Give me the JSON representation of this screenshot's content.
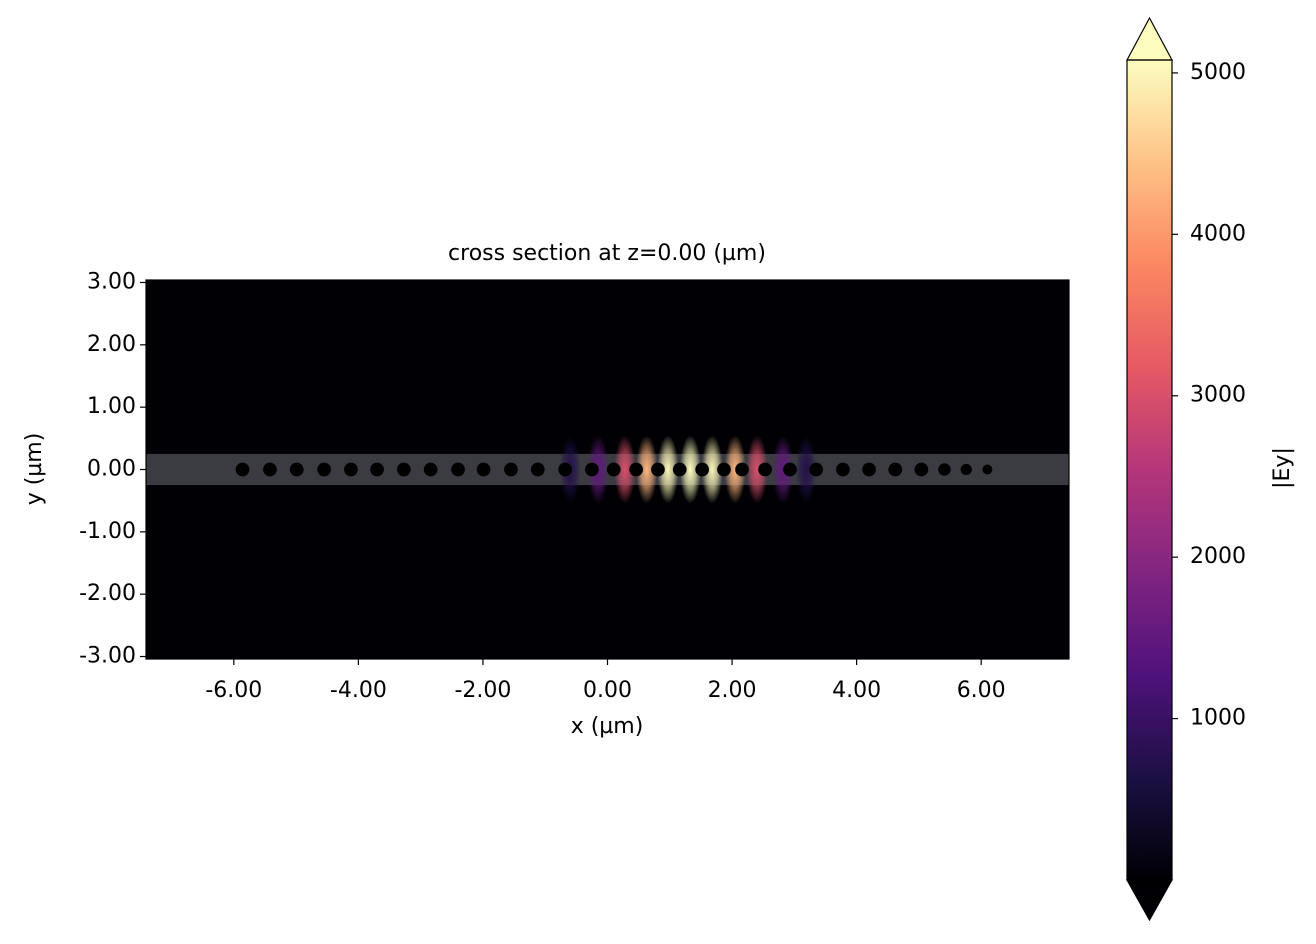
{
  "chart_data": {
    "type": "heatmap",
    "title": "cross section at z=0.00 (µm)",
    "xlabel": "x (µm)",
    "ylabel": "y (µm)",
    "xlim": [
      -7.41,
      7.41
    ],
    "ylim": [
      -3.04,
      3.04
    ],
    "xticks": [
      {
        "value": -6,
        "label": "-6.00"
      },
      {
        "value": -4,
        "label": "-4.00"
      },
      {
        "value": -2,
        "label": "-2.00"
      },
      {
        "value": 0,
        "label": "0.00"
      },
      {
        "value": 2,
        "label": "2.00"
      },
      {
        "value": 4,
        "label": "4.00"
      },
      {
        "value": 6,
        "label": "6.00"
      }
    ],
    "yticks": [
      {
        "value": -3,
        "label": "-3.00"
      },
      {
        "value": -2,
        "label": "-2.00"
      },
      {
        "value": -1,
        "label": "-1.00"
      },
      {
        "value": 0,
        "label": "0.00"
      },
      {
        "value": 1,
        "label": "1.00"
      },
      {
        "value": 2,
        "label": "2.00"
      },
      {
        "value": 3,
        "label": "3.00"
      }
    ],
    "colorbar": {
      "label": "|Ey|",
      "colormap": "magma",
      "clim": [
        0,
        5080
      ],
      "ticks": [
        1000,
        2000,
        3000,
        4000,
        5000
      ],
      "extend": "both"
    },
    "waveguide": {
      "y": [
        -0.25,
        0.25
      ],
      "color": "#3b3b42"
    },
    "holes": {
      "color": "#000000",
      "x": [
        -5.86,
        -5.42,
        -4.99,
        -4.55,
        -4.12,
        -3.7,
        -3.27,
        -2.84,
        -2.4,
        -1.99,
        -1.55,
        -1.12,
        -0.68,
        -0.25,
        0.1,
        0.46,
        0.81,
        1.16,
        1.52,
        1.87,
        2.16,
        2.53,
        2.93,
        3.35,
        3.78,
        4.2,
        4.62,
        5.04,
        5.41,
        5.76,
        6.1
      ],
      "r": [
        0.11,
        0.11,
        0.11,
        0.11,
        0.11,
        0.11,
        0.11,
        0.11,
        0.11,
        0.11,
        0.11,
        0.11,
        0.11,
        0.11,
        0.11,
        0.11,
        0.11,
        0.11,
        0.11,
        0.11,
        0.11,
        0.11,
        0.11,
        0.11,
        0.11,
        0.11,
        0.11,
        0.11,
        0.1,
        0.09,
        0.08
      ]
    },
    "field": {
      "y": 0,
      "x": [
        -0.6,
        -0.15,
        0.28,
        0.63,
        0.97,
        1.33,
        1.68,
        2.05,
        2.4,
        2.82,
        3.19
      ],
      "values": [
        700,
        1500,
        3000,
        4300,
        5000,
        5080,
        5000,
        4300,
        3000,
        1500,
        700
      ]
    }
  }
}
